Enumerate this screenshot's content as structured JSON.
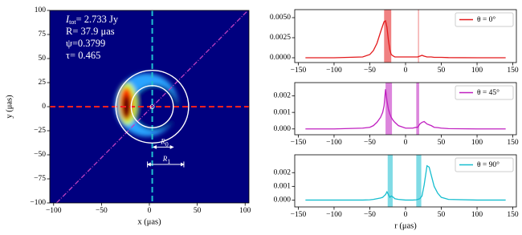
{
  "chart_data": [
    {
      "type": "heatmap",
      "xlabel": "x (μas)",
      "ylabel": "y (μas)",
      "xlim": [
        -104,
        104
      ],
      "ylim": [
        -100,
        100
      ],
      "xticks": [
        {
          "value": -100,
          "label": "−100"
        },
        {
          "value": -50,
          "label": "−50"
        },
        0,
        50,
        100
      ],
      "yticks": [
        {
          "value": -100,
          "label": "−100"
        },
        {
          "value": -75,
          "label": "−75"
        },
        {
          "value": -50,
          "label": "−50"
        },
        {
          "value": -25,
          "label": "−25"
        },
        0,
        25,
        50,
        75,
        100
      ],
      "annotations": [
        {
          "symbol": "I",
          "subscript": "tot",
          "text": "= 2.733 Jy"
        },
        "R= 37.9 μas",
        "ψ=0.3799",
        "τ= 0.465"
      ],
      "ring_labels": [
        {
          "symbol": "R",
          "subscript": "0"
        },
        {
          "symbol": "R",
          "subscript": "1"
        }
      ]
    },
    {
      "type": "line",
      "legend": "upper right",
      "x": [
        -140,
        -100,
        -60,
        -50,
        -45,
        -40,
        -35,
        -32,
        -30,
        -28,
        -26,
        -24,
        -22,
        -20,
        -17,
        -15,
        -10,
        0,
        10,
        15,
        17,
        20,
        23,
        26,
        30,
        33,
        36,
        40,
        45,
        50,
        60,
        100,
        140
      ],
      "series": [
        {
          "name": "θ = 0°",
          "color": "#e31a1c",
          "values": [
            0,
            0,
            0.0001,
            0.0004,
            0.0009,
            0.0018,
            0.0032,
            0.004,
            0.0045,
            0.0046,
            0.0038,
            0.0022,
            0.001,
            0.0004,
            0.0002,
            0.0001,
            0.0001,
            0.0001,
            0.0001,
            0.0001,
            0.0001,
            0.0002,
            0.0003,
            0.0002,
            0.0001,
            0.0001,
            0.0001,
            5e-05,
            5e-05,
            5e-05,
            2e-05,
            0,
            0
          ]
        }
      ],
      "spans": [
        [
          -30,
          -20
        ],
        [
          17.5,
          18.5
        ]
      ],
      "xlim": [
        -155,
        155
      ],
      "ylim": [
        -0.0006,
        0.006
      ],
      "xticks": [
        {
          "value": -150,
          "label": "−150"
        },
        {
          "value": -100,
          "label": "−100"
        },
        {
          "value": -50,
          "label": "−50"
        },
        0,
        50,
        100,
        150
      ],
      "yticks": [
        {
          "value": 0,
          "label": "0.0000"
        },
        {
          "value": 0.0025,
          "label": "0.0025"
        },
        {
          "value": 0.005,
          "label": "0.0050"
        }
      ]
    },
    {
      "type": "line",
      "legend": "upper right",
      "x": [
        -140,
        -100,
        -60,
        -50,
        -45,
        -40,
        -35,
        -32,
        -30,
        -28,
        -26,
        -24,
        -22,
        -20,
        -17,
        -15,
        -10,
        0,
        10,
        15,
        17,
        20,
        23,
        26,
        30,
        33,
        36,
        40,
        45,
        50,
        60,
        100,
        140
      ],
      "series": [
        {
          "name": "θ = 45°",
          "color": "#c020c0",
          "values": [
            0,
            0,
            5e-05,
            0.0001,
            0.0002,
            0.0004,
            0.0007,
            0.001,
            0.0014,
            0.0024,
            0.0017,
            0.0012,
            0.0009,
            0.0007,
            0.0005,
            0.0004,
            0.0002,
            5e-05,
            5e-05,
            0.0001,
            0.0001,
            0.0003,
            0.0004,
            0.00045,
            0.0003,
            0.00025,
            0.0002,
            0.0001,
            8e-05,
            5e-05,
            2e-05,
            0,
            0
          ]
        }
      ],
      "spans": [
        [
          -28,
          -19
        ],
        [
          15,
          19
        ]
      ],
      "xlim": [
        -155,
        155
      ],
      "ylim": [
        -0.00035,
        0.0028
      ],
      "xticks": [
        {
          "value": -150,
          "label": "−150"
        },
        {
          "value": -100,
          "label": "−100"
        },
        {
          "value": -50,
          "label": "−50"
        },
        0,
        50,
        100,
        150
      ],
      "yticks": [
        {
          "value": 0,
          "label": "0.000"
        },
        {
          "value": 0.001,
          "label": "0.001"
        },
        {
          "value": 0.002,
          "label": "0.002"
        }
      ]
    },
    {
      "type": "line",
      "legend": "upper right",
      "xlabel": "r (μas)",
      "x": [
        -140,
        -100,
        -60,
        -50,
        -45,
        -40,
        -35,
        -32,
        -30,
        -28,
        -26,
        -24,
        -22,
        -20,
        -17,
        -15,
        -10,
        0,
        10,
        15,
        17,
        20,
        23,
        26,
        30,
        33,
        36,
        40,
        45,
        50,
        60,
        100,
        140
      ],
      "series": [
        {
          "name": "θ = 90°",
          "color": "#17becf",
          "values": [
            0,
            0,
            0,
            2e-05,
            5e-05,
            0.0001,
            0.00015,
            0.0002,
            0.0003,
            0.0004,
            0.0006,
            0.0004,
            0.0002,
            0.0003,
            0.0002,
            0.0001,
            5e-05,
            0,
            0,
            2e-05,
            5e-05,
            0.0001,
            0.0003,
            0.0011,
            0.0025,
            0.0024,
            0.0018,
            0.001,
            0.0005,
            0.0002,
            5e-05,
            0,
            0
          ]
        }
      ],
      "spans": [
        [
          -25,
          -18
        ],
        [
          15,
          22
        ]
      ],
      "xlim": [
        -155,
        155
      ],
      "ylim": [
        -0.0005,
        0.0033
      ],
      "xticks": [
        {
          "value": -150,
          "label": "−150"
        },
        {
          "value": -100,
          "label": "−100"
        },
        {
          "value": -50,
          "label": "−50"
        },
        0,
        50,
        100,
        150
      ],
      "yticks": [
        {
          "value": 0,
          "label": "0.000"
        },
        {
          "value": 0.001,
          "label": "0.001"
        },
        {
          "value": 0.002,
          "label": "0.002"
        }
      ]
    }
  ]
}
